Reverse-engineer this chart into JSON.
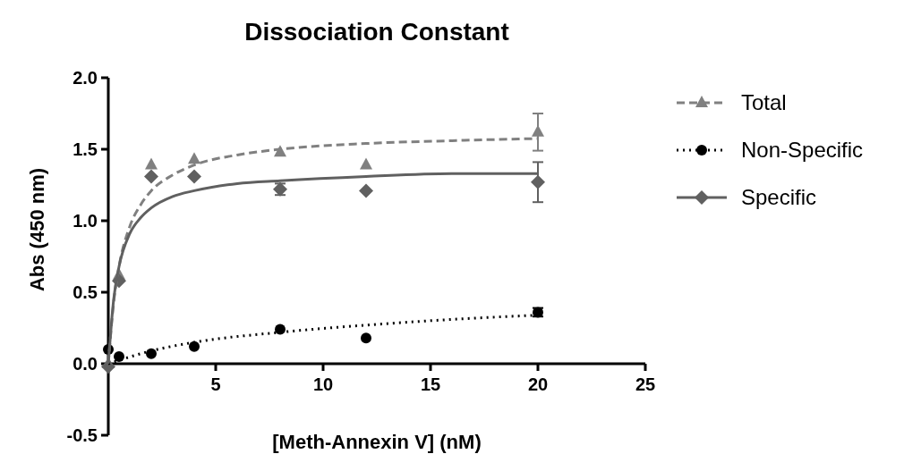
{
  "chart_data": {
    "type": "scatter",
    "title": "Dissociation Constant",
    "xlabel": "[Meth-Annexin V] (nM)",
    "ylabel": "Abs (450 nm)",
    "xlim": [
      0,
      25
    ],
    "xticks": [
      {
        "value": 0,
        "label": null
      },
      5,
      10,
      15,
      20,
      25
    ],
    "ylim": [
      -0.5,
      2.0
    ],
    "yticks": [
      -0.5,
      {
        "value": 0,
        "label": "0.0"
      },
      0.5,
      {
        "value": 1,
        "label": "1.0"
      },
      1.5,
      {
        "value": 2,
        "label": "2.0"
      }
    ],
    "grid": false,
    "legend": "right",
    "series": [
      {
        "name": "Total",
        "color": "#808080",
        "marker": "triangle",
        "line_style": "dashed",
        "x": [
          0,
          0.5,
          2,
          4,
          8,
          12,
          20
        ],
        "values": [
          0,
          0.62,
          1.39,
          1.43,
          1.48,
          1.39,
          1.62
        ],
        "errors": [
          null,
          null,
          null,
          null,
          null,
          null,
          0.13
        ]
      },
      {
        "name": "Non-Specific",
        "color": "#000000",
        "marker": "circle",
        "line_style": "dotted",
        "x": [
          0,
          0.5,
          2,
          4,
          8,
          12,
          20
        ],
        "values": [
          0.1,
          0.05,
          0.07,
          0.12,
          0.24,
          0.18,
          0.36
        ],
        "errors": [
          null,
          null,
          null,
          null,
          null,
          null,
          0.03
        ]
      },
      {
        "name": "Specific",
        "color": "#606060",
        "marker": "diamond",
        "line_style": "solid",
        "x": [
          0,
          0.5,
          2,
          4,
          8,
          12,
          20
        ],
        "values": [
          -0.02,
          0.58,
          1.31,
          1.31,
          1.22,
          1.21,
          1.27
        ],
        "errors": [
          null,
          null,
          null,
          null,
          0.04,
          null,
          0.14
        ]
      },
      {
        "type": "line",
        "color": "#808080",
        "line_style": "dashed",
        "x": [
          0,
          0.25,
          0.5,
          1,
          1.5,
          2,
          3,
          4,
          6,
          8,
          12,
          16,
          20
        ],
        "values": [
          0,
          0.43,
          0.68,
          0.96,
          1.11,
          1.21,
          1.32,
          1.39,
          1.46,
          1.5,
          1.54,
          1.56,
          1.575
        ]
      },
      {
        "type": "line",
        "color": "#000000",
        "line_style": "dotted",
        "x": [
          0,
          2,
          4,
          8,
          12,
          16,
          20
        ],
        "values": [
          0,
          0.09,
          0.15,
          0.22,
          0.27,
          0.31,
          0.34
        ]
      },
      {
        "type": "line",
        "color": "#606060",
        "line_style": "solid",
        "x": [
          0,
          0.25,
          0.5,
          1,
          1.5,
          2,
          3,
          4,
          6,
          8,
          12,
          16,
          20
        ],
        "values": [
          0,
          0.45,
          0.68,
          0.91,
          1.02,
          1.09,
          1.17,
          1.21,
          1.26,
          1.28,
          1.31,
          1.33,
          1.33
        ]
      }
    ]
  }
}
